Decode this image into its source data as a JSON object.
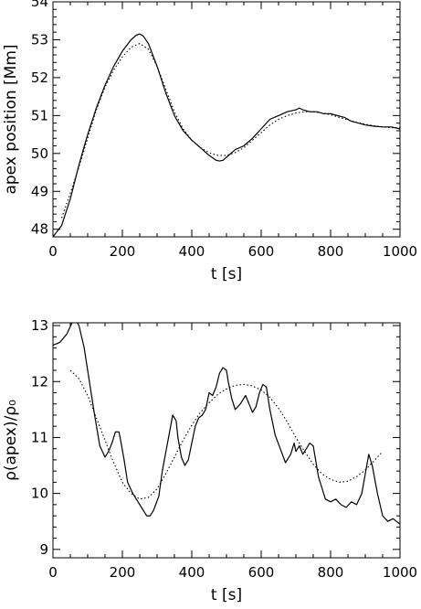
{
  "chart_data": [
    {
      "type": "line",
      "title": "",
      "xlabel": "t [s]",
      "ylabel": "apex position [Mm]",
      "xlim": [
        0,
        1000
      ],
      "ylim": [
        47.8,
        54
      ],
      "xticks": [
        0,
        200,
        400,
        600,
        800,
        1000
      ],
      "yticks": [
        48,
        49,
        50,
        51,
        52,
        53,
        54
      ],
      "grid": false,
      "series": [
        {
          "style": "solid",
          "x": [
            0,
            25,
            50,
            75,
            100,
            125,
            150,
            175,
            200,
            225,
            240,
            250,
            260,
            275,
            300,
            325,
            350,
            375,
            400,
            425,
            450,
            470,
            480,
            490,
            500,
            525,
            550,
            575,
            600,
            625,
            650,
            675,
            700,
            710,
            720,
            740,
            760,
            780,
            800,
            820,
            840,
            860,
            880,
            900,
            925,
            950,
            975,
            1000
          ],
          "y": [
            47.8,
            48.1,
            48.8,
            49.7,
            50.5,
            51.2,
            51.8,
            52.3,
            52.7,
            53.0,
            53.12,
            53.15,
            53.1,
            52.9,
            52.3,
            51.6,
            51.0,
            50.6,
            50.35,
            50.15,
            49.95,
            49.82,
            49.8,
            49.82,
            49.9,
            50.1,
            50.2,
            50.4,
            50.65,
            50.9,
            51.0,
            51.1,
            51.15,
            51.2,
            51.15,
            51.1,
            51.1,
            51.05,
            51.05,
            51.0,
            50.95,
            50.85,
            50.8,
            50.75,
            50.72,
            50.7,
            50.7,
            50.65
          ]
        },
        {
          "style": "dotted",
          "x": [
            25,
            50,
            75,
            100,
            125,
            150,
            175,
            200,
            225,
            250,
            275,
            300,
            325,
            350,
            375,
            400,
            425,
            450,
            475,
            500,
            525,
            550,
            575,
            600,
            625,
            650,
            675,
            700,
            725,
            750,
            775,
            800,
            825,
            850,
            875,
            900,
            925,
            950,
            975,
            1000
          ],
          "y": [
            48.3,
            48.95,
            49.65,
            50.4,
            51.15,
            51.75,
            52.2,
            52.55,
            52.8,
            52.9,
            52.75,
            52.3,
            51.7,
            51.1,
            50.65,
            50.35,
            50.15,
            50.02,
            49.95,
            49.95,
            50.02,
            50.15,
            50.35,
            50.55,
            50.75,
            50.9,
            51.0,
            51.07,
            51.1,
            51.1,
            51.07,
            51.02,
            50.95,
            50.88,
            50.82,
            50.77,
            50.73,
            50.7,
            50.68,
            50.67
          ]
        }
      ]
    },
    {
      "type": "line",
      "title": "",
      "xlabel": "t [s]",
      "ylabel": "ρ(apex)/ρ₀",
      "xlim": [
        0,
        1000
      ],
      "ylim": [
        8.85,
        13.05
      ],
      "xticks": [
        0,
        200,
        400,
        600,
        800,
        1000
      ],
      "yticks": [
        9,
        10,
        11,
        12,
        13
      ],
      "grid": false,
      "series": [
        {
          "style": "solid",
          "x": [
            0,
            20,
            40,
            55,
            65,
            75,
            90,
            105,
            120,
            135,
            150,
            160,
            170,
            180,
            190,
            195,
            205,
            215,
            230,
            245,
            260,
            270,
            280,
            290,
            305,
            315,
            330,
            345,
            355,
            360,
            370,
            380,
            390,
            400,
            410,
            420,
            430,
            440,
            450,
            460,
            470,
            480,
            490,
            500,
            505,
            515,
            525,
            540,
            555,
            565,
            575,
            585,
            595,
            605,
            615,
            625,
            640,
            655,
            670,
            685,
            695,
            700,
            710,
            720,
            730,
            740,
            750,
            765,
            775,
            785,
            800,
            815,
            830,
            845,
            860,
            875,
            890,
            900,
            910,
            920,
            935,
            950,
            965,
            980,
            1000
          ],
          "y": [
            12.65,
            12.7,
            12.85,
            13.05,
            13.1,
            13.0,
            12.6,
            12.0,
            11.4,
            10.85,
            10.65,
            10.75,
            10.9,
            11.1,
            11.1,
            10.95,
            10.6,
            10.2,
            10.0,
            9.85,
            9.7,
            9.6,
            9.6,
            9.7,
            9.95,
            10.4,
            10.9,
            11.4,
            11.3,
            11.0,
            10.65,
            10.5,
            10.6,
            10.9,
            11.2,
            11.35,
            11.4,
            11.5,
            11.8,
            11.75,
            11.9,
            12.15,
            12.25,
            12.2,
            12.0,
            11.7,
            11.5,
            11.6,
            11.75,
            11.6,
            11.45,
            11.55,
            11.8,
            11.95,
            11.9,
            11.5,
            11.05,
            10.8,
            10.55,
            10.7,
            10.9,
            10.75,
            10.85,
            10.7,
            10.8,
            10.9,
            10.85,
            10.3,
            10.1,
            9.9,
            9.85,
            9.9,
            9.8,
            9.75,
            9.85,
            9.8,
            10.0,
            10.35,
            10.7,
            10.5,
            10.0,
            9.6,
            9.5,
            9.55,
            9.45
          ]
        },
        {
          "style": "dotted",
          "x": [
            50,
            75,
            100,
            125,
            150,
            175,
            200,
            225,
            250,
            275,
            300,
            325,
            350,
            375,
            400,
            425,
            450,
            475,
            500,
            525,
            550,
            575,
            600,
            625,
            650,
            675,
            700,
            725,
            750,
            775,
            800,
            825,
            850,
            875,
            900,
            925,
            950
          ],
          "y": [
            12.2,
            12.05,
            11.75,
            11.35,
            10.95,
            10.55,
            10.2,
            10.0,
            9.9,
            9.93,
            10.08,
            10.35,
            10.65,
            10.95,
            11.22,
            11.45,
            11.62,
            11.77,
            11.87,
            11.93,
            11.95,
            11.92,
            11.85,
            11.72,
            11.52,
            11.28,
            11.0,
            10.75,
            10.52,
            10.35,
            10.25,
            10.2,
            10.22,
            10.3,
            10.42,
            10.58,
            10.75
          ]
        }
      ]
    }
  ]
}
